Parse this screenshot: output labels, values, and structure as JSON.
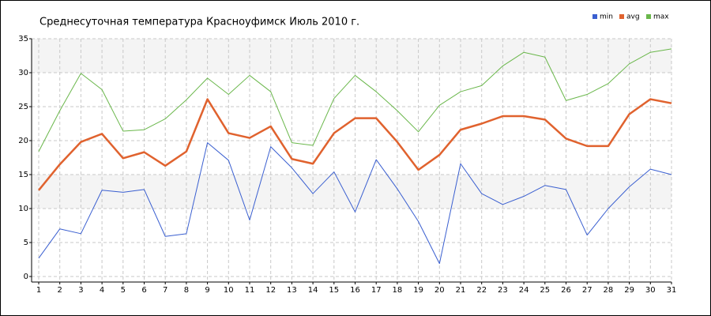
{
  "chart_data": {
    "type": "line",
    "title": "Среднесуточная температура Красноуфимск  Июль 2010 г.",
    "x": [
      1,
      2,
      3,
      4,
      5,
      6,
      7,
      8,
      9,
      10,
      11,
      12,
      13,
      14,
      15,
      16,
      17,
      18,
      19,
      20,
      21,
      22,
      23,
      24,
      25,
      26,
      27,
      28,
      29,
      30,
      31
    ],
    "xlim": [
      1,
      31
    ],
    "xticks": [
      1,
      2,
      3,
      4,
      5,
      6,
      7,
      8,
      9,
      10,
      11,
      12,
      13,
      14,
      15,
      16,
      17,
      18,
      19,
      20,
      21,
      22,
      23,
      24,
      25,
      26,
      27,
      28,
      29,
      30,
      31
    ],
    "ylim": [
      0,
      35
    ],
    "yticks": [
      0,
      5,
      10,
      15,
      20,
      25,
      30,
      35
    ],
    "grid": true,
    "legend": "top-right",
    "series": [
      {
        "name": "min",
        "color": "#3a5fd0",
        "width": 1,
        "values": [
          2.7,
          7.0,
          6.3,
          12.7,
          12.4,
          12.8,
          5.9,
          6.3,
          19.7,
          17.1,
          8.3,
          19.1,
          16.0,
          12.2,
          15.4,
          9.5,
          17.2,
          12.9,
          8.1,
          1.9,
          16.6,
          12.2,
          10.6,
          11.8,
          13.4,
          12.8,
          6.1,
          10.0,
          13.2,
          15.8,
          15.0
        ]
      },
      {
        "name": "avg",
        "color": "#e0622e",
        "width": 2.5,
        "values": [
          12.7,
          16.5,
          19.8,
          21.0,
          17.4,
          18.3,
          16.3,
          18.4,
          26.1,
          21.1,
          20.4,
          22.1,
          17.3,
          16.6,
          21.1,
          23.3,
          23.3,
          19.8,
          15.7,
          17.9,
          21.6,
          22.5,
          23.6,
          23.6,
          23.1,
          20.3,
          19.2,
          19.2,
          23.9,
          26.1,
          25.5
        ]
      },
      {
        "name": "max",
        "color": "#6ab74b",
        "width": 1,
        "values": [
          18.4,
          24.4,
          29.9,
          27.5,
          21.4,
          21.6,
          23.2,
          26.0,
          29.2,
          26.8,
          29.6,
          27.2,
          19.7,
          19.3,
          26.2,
          29.6,
          27.2,
          24.4,
          21.3,
          25.2,
          27.2,
          28.1,
          31.0,
          33.0,
          32.3,
          25.9,
          26.8,
          28.4,
          31.3,
          33.0,
          33.5
        ]
      }
    ]
  }
}
